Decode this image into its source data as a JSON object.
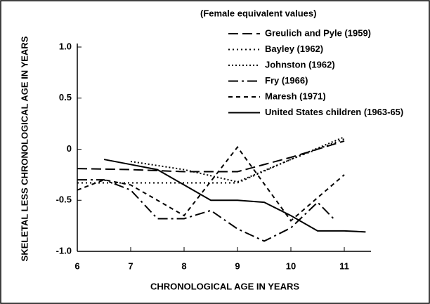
{
  "chart_data": {
    "type": "line",
    "annotation": "(Female equivalent values)",
    "xlabel": "CHRONOLOGICAL AGE IN YEARS",
    "ylabel": "SKELETAL LESS CHRONOLOGICAL AGE IN YEARS",
    "xlim": [
      6,
      11.5
    ],
    "xticks": [
      6,
      7,
      8,
      9,
      10,
      11
    ],
    "ylim": [
      -1,
      1
    ],
    "yticks": [
      {
        "value": -1,
        "label": "-1.0"
      },
      -0.5,
      0,
      0.5,
      {
        "value": 1,
        "label": "1.0"
      }
    ],
    "grid": false,
    "legend": "upper right",
    "series": [
      {
        "name": "Greulich and Pyle (1959)",
        "color": "#000",
        "dash": "14,6",
        "x": [
          6,
          7,
          8,
          9,
          10,
          11
        ],
        "values": [
          -0.19,
          -0.2,
          -0.22,
          -0.22,
          -0.08,
          0.08
        ]
      },
      {
        "name": "Bayley (1962)",
        "color": "#000",
        "dash": "2,4",
        "x": [
          6,
          7,
          8,
          9,
          10,
          11
        ],
        "values": [
          -0.33,
          -0.33,
          -0.33,
          -0.33,
          -0.1,
          0.1
        ]
      },
      {
        "name": "Johnston (1962)",
        "color": "#000",
        "dash": "2,3",
        "x": [
          7,
          8,
          9,
          10,
          11
        ],
        "values": [
          -0.12,
          -0.2,
          -0.32,
          -0.1,
          0.12
        ]
      },
      {
        "name": "Fry (1966)",
        "color": "#000",
        "dash": "14,5,3,5",
        "x": [
          6,
          6.5,
          7,
          7.5,
          8,
          8.5,
          9,
          9.5,
          10,
          10.5,
          10.8
        ],
        "values": [
          -0.3,
          -0.3,
          -0.4,
          -0.68,
          -0.68,
          -0.6,
          -0.78,
          -0.9,
          -0.77,
          -0.52,
          -0.68
        ]
      },
      {
        "name": "Maresh (1971)",
        "color": "#000",
        "dash": "6,5",
        "x": [
          6,
          6.5,
          7,
          8,
          9,
          10,
          11
        ],
        "values": [
          -0.4,
          -0.3,
          -0.35,
          -0.65,
          0.02,
          -0.7,
          -0.25
        ]
      },
      {
        "name": "United States children (1963-65)",
        "color": "#000",
        "dash": "",
        "x": [
          6.5,
          7,
          7.5,
          8,
          8.5,
          9,
          9.5,
          10,
          10.5,
          11,
          11.4
        ],
        "values": [
          -0.1,
          -0.15,
          -0.2,
          -0.35,
          -0.5,
          -0.5,
          -0.52,
          -0.65,
          -0.8,
          -0.8,
          -0.81
        ]
      }
    ]
  }
}
